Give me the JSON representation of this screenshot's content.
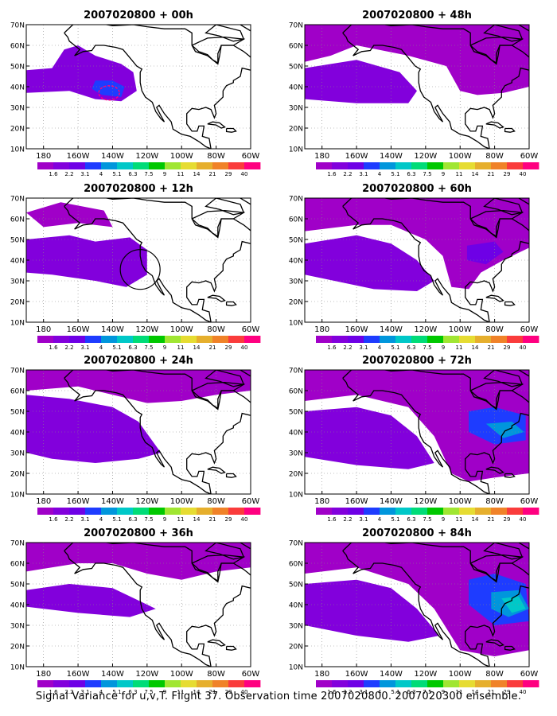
{
  "caption": "Signal Variance for u,v,T. Flight 37. Observation time 2007020800. 2007020300 ensemble.",
  "colorbar": {
    "labels": [
      "1.6",
      "2.2",
      "3.1",
      "4",
      "5.1",
      "6.3",
      "7.5",
      "9",
      "11",
      "14",
      "21",
      "29",
      "40"
    ],
    "colors": [
      "#a000c8",
      "#8200dc",
      "#6e00e6",
      "#1e3cff",
      "#0096dc",
      "#00c8c8",
      "#00dc78",
      "#00c800",
      "#a0e632",
      "#e6dc32",
      "#e6af2d",
      "#f08228",
      "#fa3c3c",
      "#ff0080"
    ]
  },
  "map_axes": {
    "x_ticks": [
      "180",
      "160W",
      "140W",
      "120W",
      "100W",
      "80W",
      "60W"
    ],
    "y_ticks": [
      "10N",
      "20N",
      "30N",
      "40N",
      "50N",
      "60N",
      "70N"
    ],
    "lon_range": [
      -190,
      -60
    ],
    "lat_range": [
      10,
      70
    ]
  },
  "chart_data": [
    {
      "type": "heatmap",
      "title": "2007020800 + 00h"
    },
    {
      "type": "heatmap",
      "title": "2007020800 + 48h"
    },
    {
      "type": "heatmap",
      "title": "2007020800 + 12h"
    },
    {
      "type": "heatmap",
      "title": "2007020800 + 60h"
    },
    {
      "type": "heatmap",
      "title": "2007020800 + 24h"
    },
    {
      "type": "heatmap",
      "title": "2007020800 + 72h"
    },
    {
      "type": "heatmap",
      "title": "2007020800 + 36h"
    },
    {
      "type": "heatmap",
      "title": "2007020800 + 84h"
    }
  ]
}
